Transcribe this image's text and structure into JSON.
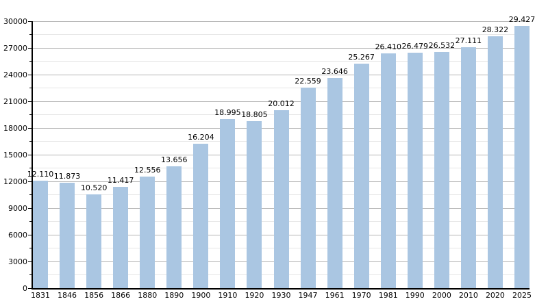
{
  "chart_data": {
    "type": "bar",
    "title": "",
    "xlabel": "",
    "ylabel": "",
    "categories": [
      "1831",
      "1846",
      "1856",
      "1866",
      "1880",
      "1890",
      "1900",
      "1910",
      "1920",
      "1930",
      "1947",
      "1961",
      "1970",
      "1981",
      "1990",
      "2000",
      "2010",
      "2020",
      "2025"
    ],
    "values": [
      12110,
      11873,
      10520,
      11417,
      12556,
      13656,
      16204,
      18995,
      18805,
      20012,
      22559,
      23646,
      25267,
      26410,
      26479,
      26532,
      27111,
      28322,
      29427
    ],
    "value_labels": [
      "12.110",
      "11.873",
      "10.520",
      "11.417",
      "12.556",
      "13.656",
      "16.204",
      "18.995",
      "18.805",
      "20.012",
      "22.559",
      "23.646",
      "25.267",
      "26.410",
      "26.479",
      "26.532",
      "27.111",
      "28.322",
      "29.427"
    ],
    "ylim": [
      0,
      30000
    ],
    "ytick_step": 3000,
    "minor_ytick_step": 1500,
    "ytick_labels": [
      "0",
      "3000",
      "6000",
      "9000",
      "12000",
      "15000",
      "18000",
      "21000",
      "24000",
      "27000",
      "30000"
    ],
    "grid": true,
    "legend_position": "none",
    "bar_color": "#aac6e2",
    "major_grid_color": "#b3b3b3",
    "minor_grid_color": "#e6e6e6",
    "axis_color": "#000000",
    "text_color": "#000000"
  }
}
